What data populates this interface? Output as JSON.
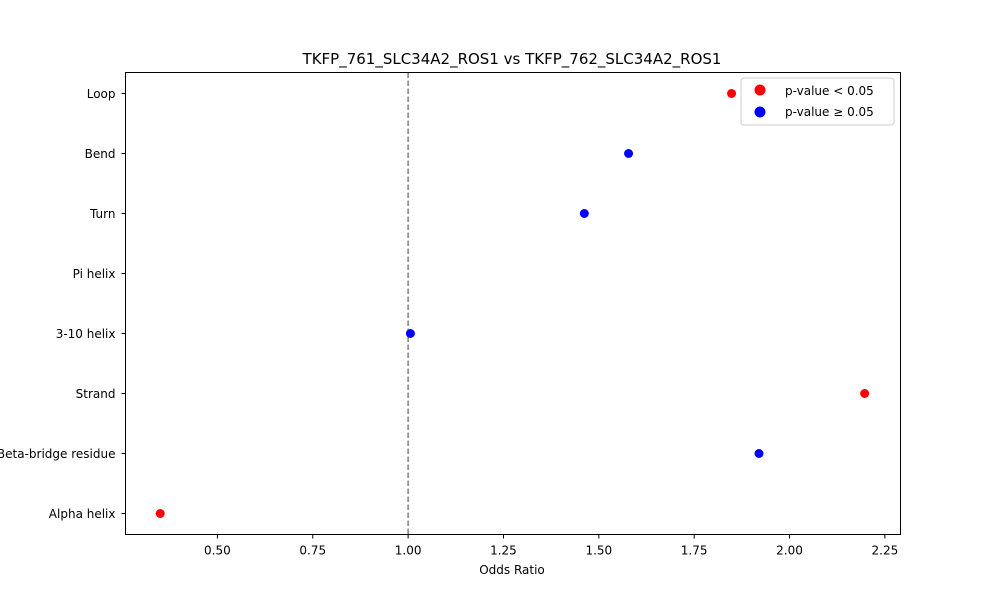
{
  "chart_data": {
    "type": "scatter",
    "title": "TKFP_761_SLC34A2_ROS1 vs TKFP_762_SLC34A2_ROS1",
    "xlabel": "Odds Ratio",
    "ylabel": "",
    "xlim": [
      0.259,
      2.291
    ],
    "xticks": [
      "0.50",
      "0.75",
      "1.00",
      "1.25",
      "1.50",
      "1.75",
      "2.00",
      "2.25"
    ],
    "xtick_values": [
      0.5,
      0.75,
      1.0,
      1.25,
      1.5,
      1.75,
      2.0,
      2.25
    ],
    "categories": [
      "Alpha helix",
      "Beta-bridge residue",
      "Strand",
      "3-10 helix",
      "Pi helix",
      "Turn",
      "Bend",
      "Loop"
    ],
    "points": [
      {
        "category": "Alpha helix",
        "x": 0.35,
        "significant": true
      },
      {
        "category": "Beta-bridge residue",
        "x": 1.92,
        "significant": false
      },
      {
        "category": "Strand",
        "x": 2.197,
        "significant": true
      },
      {
        "category": "3-10 helix",
        "x": 1.006,
        "significant": false
      },
      {
        "category": "Turn",
        "x": 1.462,
        "significant": false
      },
      {
        "category": "Bend",
        "x": 1.578,
        "significant": false
      },
      {
        "category": "Loop",
        "x": 1.848,
        "significant": true
      }
    ],
    "reference_line": 1.0,
    "legend": {
      "placement": "top-right",
      "entries": [
        {
          "label": "p-value < 0.05",
          "color": "#ff0000"
        },
        {
          "label": "p-value ≥ 0.05",
          "color": "#0000ff"
        }
      ]
    },
    "colors": {
      "significant": "#ff0000",
      "not_significant": "#0000ff",
      "reference": "#808080"
    }
  }
}
